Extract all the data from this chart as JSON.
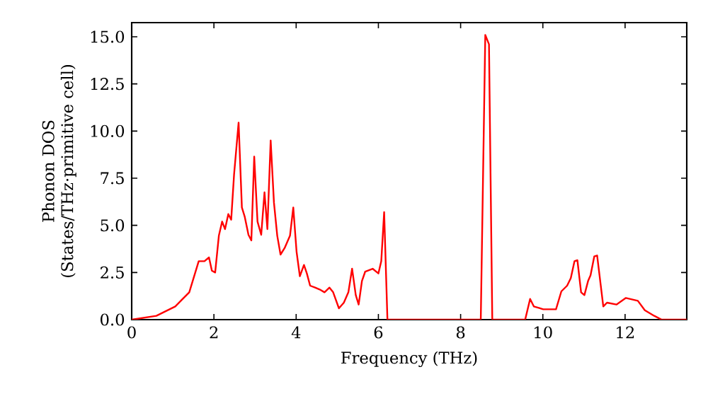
{
  "chart_data": {
    "type": "line",
    "xlabel": "Frequency (THz)",
    "ylabel": "Phonon DOS\n(States/THz·primitive cell)",
    "xlim": [
      0,
      13.5
    ],
    "ylim": [
      0,
      15.75
    ],
    "xticks": [
      0,
      2,
      4,
      6,
      8,
      10,
      12
    ],
    "yticks": [
      {
        "value": 0,
        "label": "0.0"
      },
      2.5,
      {
        "value": 5,
        "label": "5.0"
      },
      7.5,
      {
        "value": 10,
        "label": "10.0"
      },
      12.5,
      {
        "value": 15,
        "label": "15.0"
      }
    ],
    "grid": false,
    "marker": "none",
    "line_style": "solid",
    "series": [
      {
        "color": "#ff0000",
        "x": [
          0,
          0.6,
          1.06,
          1.4,
          1.63,
          1.77,
          1.88,
          1.95,
          2.03,
          2.12,
          2.2,
          2.27,
          2.35,
          2.42,
          2.49,
          2.6,
          2.68,
          2.75,
          2.84,
          2.91,
          2.98,
          3.06,
          3.15,
          3.23,
          3.3,
          3.38,
          3.46,
          3.54,
          3.62,
          3.72,
          3.85,
          3.93,
          4.01,
          4.09,
          4.19,
          4.26,
          4.34,
          4.46,
          4.57,
          4.69,
          4.81,
          4.9,
          5.04,
          5.16,
          5.27,
          5.36,
          5.45,
          5.52,
          5.6,
          5.68,
          5.86,
          6.0,
          6.07,
          6.14,
          6.22,
          8.49,
          8.6,
          8.69,
          8.77,
          9.57,
          9.69,
          9.78,
          10.01,
          10.32,
          10.45,
          10.59,
          10.68,
          10.77,
          10.84,
          10.93,
          11.01,
          11.1,
          11.16,
          11.25,
          11.32,
          11.47,
          11.56,
          11.79,
          12.02,
          12.31,
          12.48,
          12.71,
          12.89,
          13.5
        ],
        "values": [
          0,
          0.2,
          0.7,
          1.45,
          3.1,
          3.1,
          3.3,
          2.6,
          2.5,
          4.45,
          5.2,
          4.8,
          5.6,
          5.3,
          7.7,
          10.45,
          5.95,
          5.45,
          4.5,
          4.2,
          8.65,
          5.2,
          4.5,
          6.75,
          4.8,
          9.5,
          6.2,
          4.45,
          3.45,
          3.8,
          4.45,
          5.95,
          3.6,
          2.3,
          2.9,
          2.45,
          1.8,
          1.7,
          1.6,
          1.45,
          1.7,
          1.45,
          0.6,
          0.9,
          1.45,
          2.7,
          1.3,
          0.8,
          2.05,
          2.55,
          2.7,
          2.45,
          3.1,
          5.7,
          0,
          0,
          15.1,
          14.6,
          0,
          0,
          1.1,
          0.7,
          0.55,
          0.55,
          1.5,
          1.8,
          2.2,
          3.1,
          3.15,
          1.45,
          1.3,
          2.05,
          2.35,
          3.35,
          3.4,
          0.7,
          0.9,
          0.8,
          1.15,
          1.0,
          0.5,
          0.2,
          0,
          0
        ]
      }
    ]
  }
}
